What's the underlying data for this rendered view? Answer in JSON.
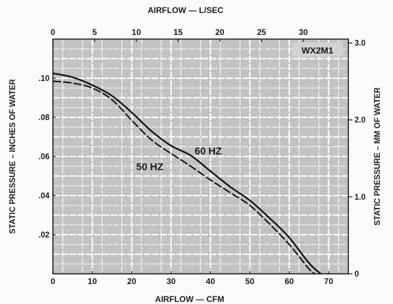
{
  "chart_data": {
    "type": "line",
    "title": "",
    "model_label": "WX2M1",
    "x_bottom": {
      "label": "AIRFLOW — CFM",
      "range": [
        0,
        75
      ],
      "ticks": [
        0,
        10,
        20,
        30,
        40,
        50,
        60,
        70
      ]
    },
    "x_top": {
      "label": "AIRFLOW — L/SEC",
      "range": [
        0,
        35.4
      ],
      "ticks": [
        0,
        5,
        10,
        15,
        20,
        25,
        30
      ]
    },
    "y_left": {
      "label": "STATIC PRESSURE – INCHES OF WATER",
      "range": [
        0,
        0.12
      ],
      "ticks": [
        ".02",
        ".04",
        ".06",
        ".08",
        ".10"
      ],
      "tick_values": [
        0.02,
        0.04,
        0.06,
        0.08,
        0.1
      ]
    },
    "y_right": {
      "label": "STATIC PRESSURE – MM OF WATER",
      "range": [
        0,
        3.05
      ],
      "ticks": [
        "0",
        "1.0",
        "2.0",
        "3.0"
      ],
      "tick_values": [
        0,
        1.0,
        2.0,
        3.0
      ]
    },
    "grid": true,
    "series": [
      {
        "name": "60 HZ",
        "style": "solid",
        "x": [
          0,
          5,
          10,
          15,
          20,
          25,
          30,
          35,
          40,
          45,
          50,
          55,
          60,
          65,
          68
        ],
        "y": [
          0.1025,
          0.1005,
          0.0965,
          0.091,
          0.0825,
          0.073,
          0.0655,
          0.0605,
          0.0525,
          0.0445,
          0.0375,
          0.0285,
          0.0185,
          0.0055,
          0.0
        ]
      },
      {
        "name": "50 HZ",
        "style": "dashed",
        "x": [
          0,
          5,
          10,
          15,
          20,
          25,
          30,
          35,
          40,
          45,
          50,
          55,
          60,
          65,
          66.5
        ],
        "y": [
          0.0985,
          0.0975,
          0.095,
          0.089,
          0.0785,
          0.0685,
          0.0615,
          0.055,
          0.048,
          0.0415,
          0.035,
          0.0255,
          0.015,
          0.0025,
          0.0
        ]
      }
    ]
  }
}
